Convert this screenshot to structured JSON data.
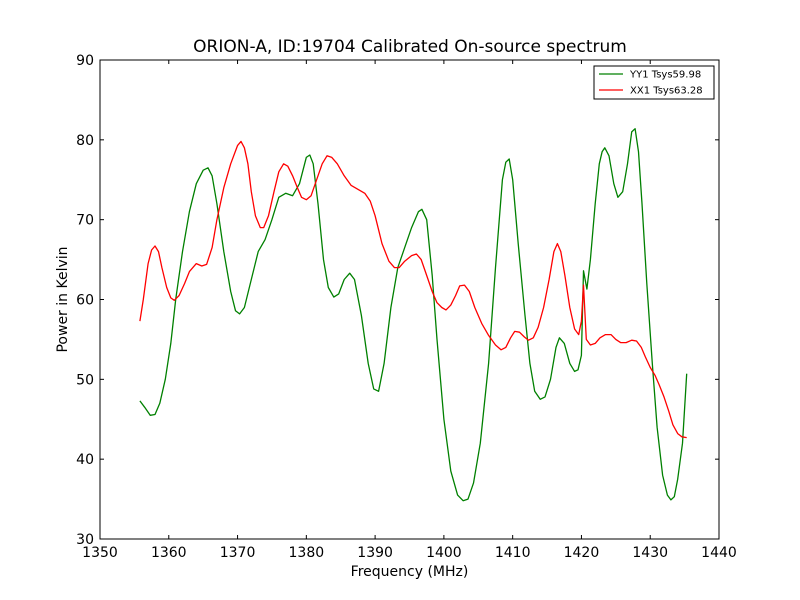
{
  "chart_data": {
    "type": "line",
    "title": "ORION-A, ID:19704 Calibrated On-source spectrum",
    "xlabel": "Frequency (MHz)",
    "ylabel": "Power in Kelvin",
    "xlim": [
      1350,
      1440
    ],
    "ylim": [
      30,
      90
    ],
    "xticks": [
      1350,
      1360,
      1370,
      1380,
      1390,
      1400,
      1410,
      1420,
      1430,
      1440
    ],
    "yticks": [
      30,
      40,
      50,
      60,
      70,
      80,
      90
    ],
    "grid": false,
    "legend_position": "top-right",
    "series": [
      {
        "name": "YY1 Tsys59.98",
        "color": "#008000",
        "points": [
          [
            1355.8,
            47.3
          ],
          [
            1356.5,
            46.5
          ],
          [
            1357.3,
            45.5
          ],
          [
            1358.0,
            45.6
          ],
          [
            1358.7,
            47.0
          ],
          [
            1359.5,
            50.0
          ],
          [
            1360.3,
            54.5
          ],
          [
            1361.0,
            60.0
          ],
          [
            1362.0,
            66.0
          ],
          [
            1363.0,
            71.0
          ],
          [
            1364.0,
            74.5
          ],
          [
            1365.0,
            76.2
          ],
          [
            1365.7,
            76.5
          ],
          [
            1366.3,
            75.5
          ],
          [
            1367.0,
            72.0
          ],
          [
            1368.0,
            66.0
          ],
          [
            1369.0,
            61.0
          ],
          [
            1369.7,
            58.6
          ],
          [
            1370.3,
            58.2
          ],
          [
            1371.0,
            59.0
          ],
          [
            1372.0,
            62.5
          ],
          [
            1373.0,
            66.0
          ],
          [
            1374.0,
            67.5
          ],
          [
            1375.0,
            70.0
          ],
          [
            1376.0,
            72.8
          ],
          [
            1377.0,
            73.3
          ],
          [
            1378.0,
            73.0
          ],
          [
            1379.0,
            74.5
          ],
          [
            1380.0,
            77.8
          ],
          [
            1380.5,
            78.1
          ],
          [
            1381.0,
            77.0
          ],
          [
            1381.7,
            72.0
          ],
          [
            1382.5,
            65.0
          ],
          [
            1383.2,
            61.5
          ],
          [
            1384.0,
            60.3
          ],
          [
            1384.7,
            60.7
          ],
          [
            1385.5,
            62.5
          ],
          [
            1386.3,
            63.3
          ],
          [
            1387.0,
            62.5
          ],
          [
            1388.0,
            58.0
          ],
          [
            1389.0,
            52.0
          ],
          [
            1389.8,
            48.8
          ],
          [
            1390.5,
            48.5
          ],
          [
            1391.3,
            52.0
          ],
          [
            1392.3,
            59.0
          ],
          [
            1393.3,
            64.0
          ],
          [
            1394.3,
            66.5
          ],
          [
            1395.3,
            69.0
          ],
          [
            1396.3,
            71.0
          ],
          [
            1396.8,
            71.3
          ],
          [
            1397.5,
            70.0
          ],
          [
            1398.3,
            63.0
          ],
          [
            1399.0,
            55.0
          ],
          [
            1400.0,
            45.0
          ],
          [
            1401.0,
            38.5
          ],
          [
            1402.0,
            35.5
          ],
          [
            1402.8,
            34.8
          ],
          [
            1403.5,
            35.0
          ],
          [
            1404.3,
            37.0
          ],
          [
            1405.3,
            42.0
          ],
          [
            1406.5,
            52.0
          ],
          [
            1407.5,
            64.0
          ],
          [
            1408.5,
            75.0
          ],
          [
            1409.0,
            77.2
          ],
          [
            1409.5,
            77.6
          ],
          [
            1410.0,
            75.0
          ],
          [
            1410.8,
            67.0
          ],
          [
            1411.8,
            58.0
          ],
          [
            1412.5,
            52.0
          ],
          [
            1413.2,
            48.5
          ],
          [
            1414.0,
            47.5
          ],
          [
            1414.7,
            47.8
          ],
          [
            1415.5,
            50.0
          ],
          [
            1416.3,
            54.0
          ],
          [
            1416.8,
            55.2
          ],
          [
            1417.5,
            54.5
          ],
          [
            1418.3,
            52.0
          ],
          [
            1419.0,
            51.0
          ],
          [
            1419.5,
            51.2
          ],
          [
            1420.0,
            53.0
          ],
          [
            1420.3,
            63.6
          ],
          [
            1420.8,
            61.3
          ],
          [
            1421.3,
            65.0
          ],
          [
            1422.0,
            72.0
          ],
          [
            1422.6,
            77.0
          ],
          [
            1423.0,
            78.5
          ],
          [
            1423.4,
            79.0
          ],
          [
            1424.0,
            78.0
          ],
          [
            1424.7,
            74.5
          ],
          [
            1425.3,
            72.8
          ],
          [
            1426.0,
            73.5
          ],
          [
            1426.7,
            77.0
          ],
          [
            1427.3,
            81.0
          ],
          [
            1427.8,
            81.4
          ],
          [
            1428.3,
            78.5
          ],
          [
            1428.8,
            72.0
          ],
          [
            1429.5,
            62.0
          ],
          [
            1430.3,
            52.0
          ],
          [
            1431.0,
            44.0
          ],
          [
            1431.8,
            38.0
          ],
          [
            1432.5,
            35.5
          ],
          [
            1433.0,
            34.9
          ],
          [
            1433.5,
            35.3
          ],
          [
            1434.0,
            37.5
          ],
          [
            1434.7,
            42.0
          ],
          [
            1435.3,
            50.7
          ]
        ]
      },
      {
        "name": "XX1 Tsys63.28",
        "color": "#ff0000",
        "points": [
          [
            1355.8,
            57.3
          ],
          [
            1356.3,
            60.0
          ],
          [
            1357.0,
            64.5
          ],
          [
            1357.5,
            66.2
          ],
          [
            1358.0,
            66.7
          ],
          [
            1358.5,
            66.0
          ],
          [
            1359.0,
            64.0
          ],
          [
            1359.7,
            61.5
          ],
          [
            1360.3,
            60.2
          ],
          [
            1360.8,
            59.9
          ],
          [
            1361.5,
            60.5
          ],
          [
            1362.3,
            62.0
          ],
          [
            1363.0,
            63.5
          ],
          [
            1364.0,
            64.5
          ],
          [
            1364.8,
            64.2
          ],
          [
            1365.5,
            64.4
          ],
          [
            1366.3,
            66.5
          ],
          [
            1367.0,
            70.0
          ],
          [
            1368.0,
            74.0
          ],
          [
            1369.0,
            77.0
          ],
          [
            1370.0,
            79.3
          ],
          [
            1370.5,
            79.8
          ],
          [
            1371.0,
            79.0
          ],
          [
            1371.5,
            77.0
          ],
          [
            1372.0,
            73.5
          ],
          [
            1372.6,
            70.5
          ],
          [
            1373.3,
            69.0
          ],
          [
            1373.8,
            69.0
          ],
          [
            1374.5,
            70.5
          ],
          [
            1375.3,
            73.5
          ],
          [
            1376.0,
            76.0
          ],
          [
            1376.7,
            77.0
          ],
          [
            1377.3,
            76.7
          ],
          [
            1378.0,
            75.5
          ],
          [
            1378.7,
            74.0
          ],
          [
            1379.3,
            72.8
          ],
          [
            1380.0,
            72.5
          ],
          [
            1380.7,
            73.0
          ],
          [
            1381.5,
            75.0
          ],
          [
            1382.3,
            77.0
          ],
          [
            1383.0,
            78.0
          ],
          [
            1383.7,
            77.8
          ],
          [
            1384.5,
            77.0
          ],
          [
            1385.5,
            75.5
          ],
          [
            1386.5,
            74.3
          ],
          [
            1387.5,
            73.8
          ],
          [
            1388.5,
            73.3
          ],
          [
            1389.3,
            72.3
          ],
          [
            1390.0,
            70.5
          ],
          [
            1391.0,
            67.0
          ],
          [
            1392.0,
            64.8
          ],
          [
            1392.8,
            64.0
          ],
          [
            1393.5,
            64.0
          ],
          [
            1394.3,
            64.8
          ],
          [
            1395.3,
            65.5
          ],
          [
            1396.0,
            65.7
          ],
          [
            1396.7,
            65.0
          ],
          [
            1397.5,
            63.0
          ],
          [
            1398.3,
            61.0
          ],
          [
            1399.0,
            59.6
          ],
          [
            1399.7,
            59.0
          ],
          [
            1400.3,
            58.7
          ],
          [
            1401.0,
            59.3
          ],
          [
            1401.7,
            60.5
          ],
          [
            1402.3,
            61.7
          ],
          [
            1403.0,
            61.8
          ],
          [
            1403.7,
            61.0
          ],
          [
            1404.5,
            59.0
          ],
          [
            1405.5,
            57.0
          ],
          [
            1406.5,
            55.5
          ],
          [
            1407.5,
            54.3
          ],
          [
            1408.3,
            53.7
          ],
          [
            1409.0,
            54.0
          ],
          [
            1409.7,
            55.2
          ],
          [
            1410.3,
            56.0
          ],
          [
            1411.0,
            55.9
          ],
          [
            1411.7,
            55.3
          ],
          [
            1412.3,
            54.9
          ],
          [
            1413.0,
            55.2
          ],
          [
            1413.7,
            56.5
          ],
          [
            1414.5,
            59.0
          ],
          [
            1415.3,
            62.5
          ],
          [
            1416.0,
            66.0
          ],
          [
            1416.5,
            67.0
          ],
          [
            1417.0,
            66.0
          ],
          [
            1417.6,
            63.0
          ],
          [
            1418.3,
            59.0
          ],
          [
            1419.0,
            56.3
          ],
          [
            1419.6,
            55.6
          ],
          [
            1420.0,
            57.3
          ],
          [
            1420.3,
            61.8
          ],
          [
            1420.7,
            55.0
          ],
          [
            1421.3,
            54.3
          ],
          [
            1422.0,
            54.5
          ],
          [
            1422.7,
            55.2
          ],
          [
            1423.5,
            55.6
          ],
          [
            1424.3,
            55.6
          ],
          [
            1425.0,
            55.0
          ],
          [
            1425.7,
            54.6
          ],
          [
            1426.5,
            54.6
          ],
          [
            1427.3,
            54.9
          ],
          [
            1428.0,
            54.8
          ],
          [
            1428.7,
            54.0
          ],
          [
            1429.3,
            52.8
          ],
          [
            1430.0,
            51.5
          ],
          [
            1430.7,
            50.5
          ],
          [
            1431.3,
            49.3
          ],
          [
            1432.0,
            47.8
          ],
          [
            1432.7,
            46.0
          ],
          [
            1433.3,
            44.3
          ],
          [
            1434.0,
            43.2
          ],
          [
            1434.6,
            42.8
          ],
          [
            1435.3,
            42.7
          ]
        ]
      }
    ]
  }
}
